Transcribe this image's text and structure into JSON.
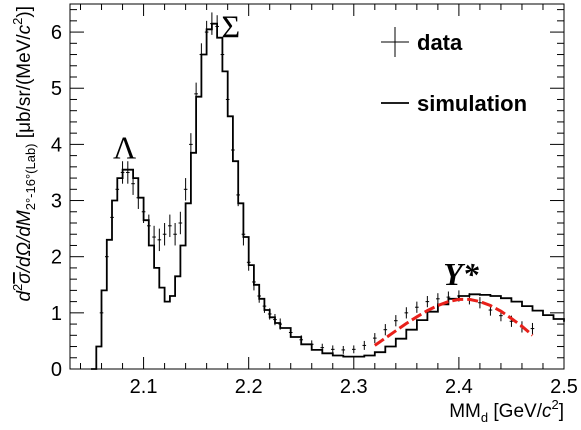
{
  "chart_data": {
    "type": "line",
    "xlabel": {
      "main": "MM",
      "sub": "d",
      "unit_open": " [GeV/",
      "unit_var": "c",
      "unit_exp": "2",
      "unit_close": "]"
    },
    "ylabel": {
      "p1": "d",
      "p1sup": "2",
      "p2": "σ",
      "p3": "/dΩ/dM",
      "sub": "2°-16°(Lab)",
      "unit_open": " [μb/sr/(MeV/",
      "unit_var": "c",
      "unit_exp": "2",
      "unit_close": ")]"
    },
    "xlim": [
      2.03,
      2.5
    ],
    "ylim": [
      0,
      6.5
    ],
    "xticks": [
      2.1,
      2.2,
      2.3,
      2.4,
      2.5
    ],
    "xtick_labels": [
      "2.1",
      "2.2",
      "2.3",
      "2.4",
      "2.5"
    ],
    "yticks": [
      0,
      1,
      2,
      3,
      4,
      5,
      6
    ],
    "ytick_labels": [
      "0",
      "1",
      "2",
      "3",
      "4",
      "5",
      "6"
    ],
    "legend": {
      "position": "top-right",
      "entries": [
        {
          "label": "data",
          "marker": "cross"
        },
        {
          "label": "simulation",
          "marker": "line"
        }
      ]
    },
    "annotations": [
      {
        "text": "Λ",
        "x": 2.082,
        "y": 3.75,
        "style": "upright"
      },
      {
        "text": "Σ",
        "x": 2.183,
        "y": 5.9,
        "style": "upright"
      },
      {
        "text": "Y*",
        "x": 2.402,
        "y": 1.5,
        "style": "italic"
      }
    ],
    "series": [
      {
        "name": "simulation",
        "color": "#000000",
        "x": [
          2.05,
          2.055,
          2.06,
          2.065,
          2.07,
          2.075,
          2.08,
          2.085,
          2.09,
          2.095,
          2.1,
          2.105,
          2.11,
          2.115,
          2.12,
          2.125,
          2.13,
          2.135,
          2.14,
          2.145,
          2.15,
          2.155,
          2.16,
          2.165,
          2.17,
          2.175,
          2.18,
          2.185,
          2.19,
          2.195,
          2.2,
          2.205,
          2.21,
          2.215,
          2.22,
          2.225,
          2.23,
          2.24,
          2.25,
          2.26,
          2.27,
          2.28,
          2.29,
          2.3,
          2.31,
          2.32,
          2.33,
          2.34,
          2.35,
          2.36,
          2.37,
          2.38,
          2.39,
          2.4,
          2.41,
          2.42,
          2.43,
          2.44,
          2.45,
          2.46,
          2.47,
          2.48,
          2.49,
          2.5
        ],
        "y": [
          0.0,
          0.4,
          1.4,
          2.3,
          3.0,
          3.4,
          3.55,
          3.55,
          3.4,
          3.05,
          2.65,
          2.2,
          1.8,
          1.45,
          1.2,
          1.3,
          1.65,
          2.2,
          2.95,
          3.85,
          4.85,
          5.6,
          6.05,
          6.15,
          5.9,
          5.3,
          4.5,
          3.7,
          2.95,
          2.35,
          1.85,
          1.5,
          1.25,
          1.05,
          0.92,
          0.82,
          0.73,
          0.57,
          0.44,
          0.34,
          0.28,
          0.24,
          0.22,
          0.22,
          0.24,
          0.3,
          0.4,
          0.54,
          0.7,
          0.87,
          1.02,
          1.15,
          1.25,
          1.3,
          1.33,
          1.32,
          1.3,
          1.26,
          1.2,
          1.12,
          1.04,
          0.96,
          0.89,
          0.84
        ]
      },
      {
        "name": "data",
        "color": "#000000",
        "x": [
          2.06,
          2.065,
          2.07,
          2.075,
          2.08,
          2.085,
          2.09,
          2.095,
          2.1,
          2.105,
          2.11,
          2.115,
          2.12,
          2.125,
          2.13,
          2.135,
          2.14,
          2.145,
          2.15,
          2.155,
          2.16,
          2.165,
          2.17,
          2.175,
          2.18,
          2.185,
          2.19,
          2.195,
          2.2,
          2.205,
          2.21,
          2.215,
          2.22,
          2.225,
          2.23,
          2.24,
          2.25,
          2.26,
          2.27,
          2.28,
          2.29,
          2.3,
          2.31,
          2.32,
          2.33,
          2.34,
          2.35,
          2.36,
          2.37,
          2.38,
          2.39,
          2.4,
          2.41,
          2.42,
          2.43,
          2.44,
          2.45,
          2.46,
          2.47
        ],
        "y": [
          1.0,
          2.0,
          2.7,
          3.2,
          3.5,
          3.5,
          3.3,
          3.05,
          2.8,
          2.55,
          2.35,
          2.3,
          2.4,
          2.55,
          2.4,
          2.6,
          3.2,
          4.0,
          4.9,
          5.6,
          6.0,
          6.15,
          6.1,
          5.6,
          4.8,
          3.9,
          3.1,
          2.4,
          1.9,
          1.55,
          1.3,
          1.12,
          0.98,
          0.88,
          0.8,
          0.65,
          0.52,
          0.44,
          0.38,
          0.35,
          0.34,
          0.35,
          0.42,
          0.55,
          0.7,
          0.86,
          1.0,
          1.1,
          1.2,
          1.25,
          1.28,
          1.3,
          1.25,
          1.18,
          1.05,
          0.95,
          0.85,
          0.75,
          0.72
        ],
        "err": [
          0.15,
          0.2,
          0.2,
          0.2,
          0.2,
          0.2,
          0.2,
          0.2,
          0.2,
          0.2,
          0.2,
          0.2,
          0.2,
          0.2,
          0.2,
          0.2,
          0.2,
          0.2,
          0.2,
          0.2,
          0.2,
          0.2,
          0.2,
          0.2,
          0.2,
          0.2,
          0.2,
          0.2,
          0.15,
          0.15,
          0.12,
          0.12,
          0.1,
          0.1,
          0.1,
          0.08,
          0.08,
          0.07,
          0.07,
          0.07,
          0.07,
          0.07,
          0.08,
          0.09,
          0.1,
          0.1,
          0.1,
          0.1,
          0.1,
          0.1,
          0.1,
          0.1,
          0.1,
          0.1,
          0.1,
          0.1,
          0.1,
          0.1,
          0.1
        ]
      },
      {
        "name": "fit",
        "color": "#e8201a",
        "x": [
          2.32,
          2.33,
          2.34,
          2.35,
          2.36,
          2.37,
          2.38,
          2.39,
          2.4,
          2.41,
          2.42,
          2.43,
          2.44,
          2.45,
          2.46,
          2.47
        ],
        "y": [
          0.42,
          0.55,
          0.68,
          0.81,
          0.93,
          1.04,
          1.13,
          1.2,
          1.24,
          1.24,
          1.2,
          1.13,
          1.03,
          0.9,
          0.76,
          0.6
        ]
      }
    ]
  }
}
